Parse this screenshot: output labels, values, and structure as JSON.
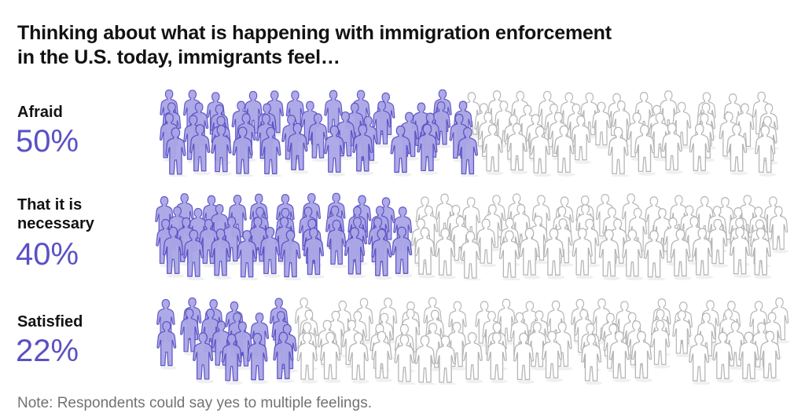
{
  "title": "Thinking about what is happening with immigration enforcement in the U.S. today, immigrants feel…",
  "rows": [
    {
      "label": "Afraid",
      "percent_label": "50%",
      "value": 50
    },
    {
      "label": "That it is necessary",
      "percent_label": "40%",
      "value": 40
    },
    {
      "label": "Satisfied",
      "percent_label": "22%",
      "value": 22
    }
  ],
  "note": "Note: Respondents could say yes to multiple feelings.",
  "colors": {
    "highlight_fill": "#aaa6e6",
    "highlight_stroke": "#5a51c4",
    "neutral_fill": "#ffffff",
    "neutral_stroke": "#b5b5b5",
    "percent_text": "#5a51c4"
  },
  "chart_data": {
    "type": "bar",
    "subtype": "pictogram",
    "title": "Thinking about what is happening with immigration enforcement in the U.S. today, immigrants feel…",
    "categories": [
      "Afraid",
      "That it is necessary",
      "Satisfied"
    ],
    "values": [
      50,
      40,
      22
    ],
    "unit": "%",
    "ylim": [
      0,
      100
    ],
    "note": "Note: Respondents could say yes to multiple feelings.",
    "xlabel": "",
    "ylabel": ""
  }
}
